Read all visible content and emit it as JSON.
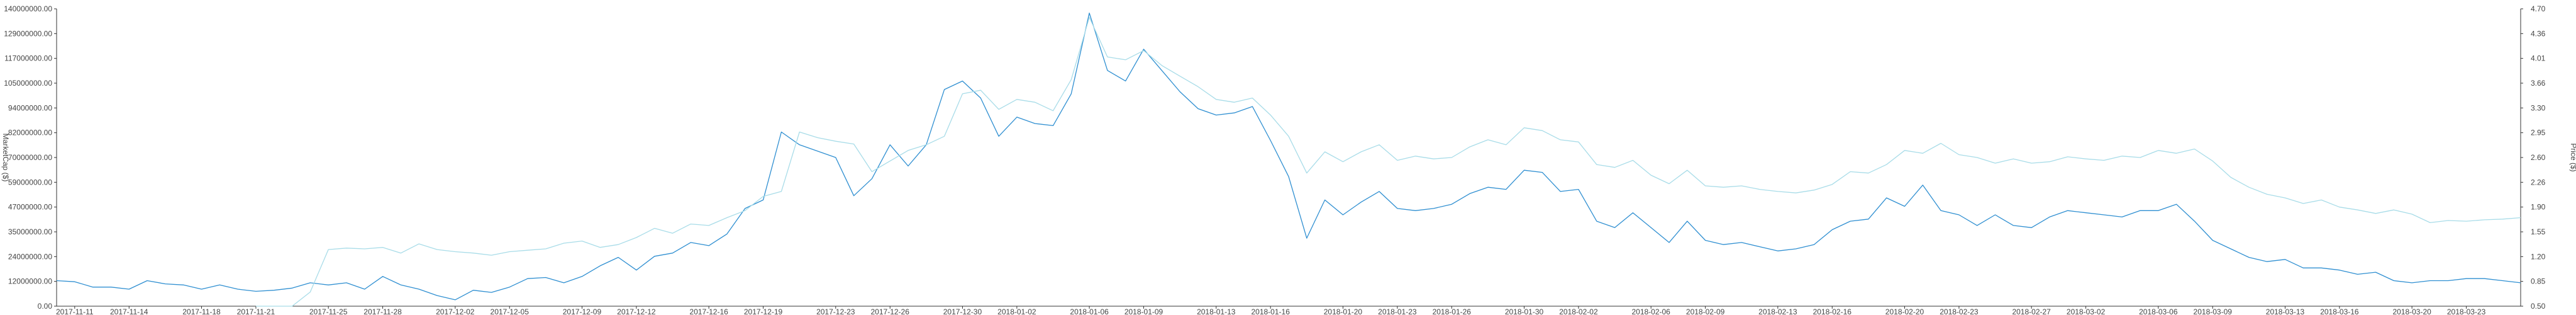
{
  "chart_data": {
    "type": "line",
    "y_left": {
      "label": "MarketCap ($)",
      "ticks": [
        "0.00",
        "12000000.00",
        "24000000.00",
        "35000000.00",
        "47000000.00",
        "59000000.00",
        "70000000.00",
        "82000000.00",
        "94000000.00",
        "105000000.00",
        "117000000.00",
        "129000000.00",
        "140000000.00"
      ],
      "ylim": [
        0,
        140000000
      ]
    },
    "y_right": {
      "label": "Price ($)",
      "ticks": [
        "0.50",
        "0.85",
        "1.20",
        "1.55",
        "1.90",
        "2.26",
        "2.60",
        "2.95",
        "3.30",
        "3.66",
        "4.01",
        "4.36",
        "4.70"
      ],
      "ylim": [
        0.5,
        4.7
      ]
    },
    "x_ticks": [
      "2017-11-11",
      "2017-11-14",
      "2017-11-18",
      "2017-11-21",
      "2017-11-25",
      "2017-11-28",
      "2017-12-02",
      "2017-12-05",
      "2017-12-09",
      "2017-12-12",
      "2017-12-16",
      "2017-12-19",
      "2017-12-23",
      "2017-12-26",
      "2017-12-30",
      "2018-01-02",
      "2018-01-06",
      "2018-01-09",
      "2018-01-13",
      "2018-01-16",
      "2018-01-20",
      "2018-01-23",
      "2018-01-26",
      "2018-01-30",
      "2018-02-02",
      "2018-02-06",
      "2018-02-09",
      "2018-02-13",
      "2018-02-16",
      "2018-02-20",
      "2018-02-23",
      "2018-02-27",
      "2018-03-02",
      "2018-03-06",
      "2018-03-09",
      "2018-03-13",
      "2018-03-16",
      "2018-03-20",
      "2018-03-23"
    ],
    "x_range": [
      "2017-11-10",
      "2018-03-26"
    ],
    "grid": false,
    "legend": "none",
    "series": [
      {
        "axis": "left",
        "color": "#2f8fd1",
        "x": [
          "2017-11-10",
          "2017-11-11",
          "2017-11-12",
          "2017-11-13",
          "2017-11-14",
          "2017-11-15",
          "2017-11-16",
          "2017-11-17",
          "2017-11-18",
          "2017-11-19",
          "2017-11-20",
          "2017-11-21",
          "2017-11-22",
          "2017-11-23",
          "2017-11-24",
          "2017-11-25",
          "2017-11-26",
          "2017-11-27",
          "2017-11-28",
          "2017-11-29",
          "2017-11-30",
          "2017-12-01",
          "2017-12-02",
          "2017-12-03",
          "2017-12-04",
          "2017-12-05",
          "2017-12-06",
          "2017-12-07",
          "2017-12-08",
          "2017-12-09",
          "2017-12-10",
          "2017-12-11",
          "2017-12-12",
          "2017-12-13",
          "2017-12-14",
          "2017-12-15",
          "2017-12-16",
          "2017-12-17",
          "2017-12-18",
          "2017-12-19",
          "2017-12-20",
          "2017-12-21",
          "2017-12-22",
          "2017-12-23",
          "2017-12-24",
          "2017-12-25",
          "2017-12-26",
          "2017-12-27",
          "2017-12-28",
          "2017-12-29",
          "2017-12-30",
          "2017-12-31",
          "2018-01-01",
          "2018-01-02",
          "2018-01-03",
          "2018-01-04",
          "2018-01-05",
          "2018-01-06",
          "2018-01-07",
          "2018-01-08",
          "2018-01-09",
          "2018-01-10",
          "2018-01-11",
          "2018-01-12",
          "2018-01-13",
          "2018-01-14",
          "2018-01-15",
          "2018-01-16",
          "2018-01-17",
          "2018-01-18",
          "2018-01-19",
          "2018-01-20",
          "2018-01-21",
          "2018-01-22",
          "2018-01-23",
          "2018-01-24",
          "2018-01-25",
          "2018-01-26",
          "2018-01-27",
          "2018-01-28",
          "2018-01-29",
          "2018-01-30",
          "2018-01-31",
          "2018-02-01",
          "2018-02-02",
          "2018-02-03",
          "2018-02-04",
          "2018-02-05",
          "2018-02-06",
          "2018-02-07",
          "2018-02-08",
          "2018-02-09",
          "2018-02-10",
          "2018-02-11",
          "2018-02-12",
          "2018-02-13",
          "2018-02-14",
          "2018-02-15",
          "2018-02-16",
          "2018-02-17",
          "2018-02-18",
          "2018-02-19",
          "2018-02-20",
          "2018-02-21",
          "2018-02-22",
          "2018-02-23",
          "2018-02-24",
          "2018-02-25",
          "2018-02-26",
          "2018-02-27",
          "2018-02-28",
          "2018-03-01",
          "2018-03-02",
          "2018-03-03",
          "2018-03-04",
          "2018-03-05",
          "2018-03-06",
          "2018-03-07",
          "2018-03-08",
          "2018-03-09",
          "2018-03-10",
          "2018-03-11",
          "2018-03-12",
          "2018-03-13",
          "2018-03-14",
          "2018-03-15",
          "2018-03-16",
          "2018-03-17",
          "2018-03-18",
          "2018-03-19",
          "2018-03-20",
          "2018-03-21",
          "2018-03-22",
          "2018-03-23",
          "2018-03-24",
          "2018-03-25",
          "2018-03-26"
        ],
        "values": [
          12.0,
          11.5,
          9.0,
          9.0,
          8.0,
          12.0,
          10.5,
          10.0,
          8.0,
          10.0,
          8.0,
          7.0,
          7.5,
          8.5,
          11.0,
          10.0,
          11.0,
          8.0,
          14.0,
          10.0,
          8.0,
          5.0,
          3.0,
          7.5,
          6.5,
          9.0,
          13.0,
          13.5,
          11.0,
          14.0,
          19.0,
          23.0,
          17.0,
          23.5,
          25.0,
          30.0,
          28.5,
          34.0,
          46.0,
          50.0,
          82.0,
          76.0,
          73.0,
          70.0,
          52.0,
          60.0,
          76.0,
          66.0,
          76.0,
          102.0,
          106.0,
          98.0,
          80.0,
          89.0,
          86.0,
          85.0,
          100.0,
          138.0,
          111.0,
          106.0,
          121.0,
          111.0,
          101.0,
          93.0,
          90.0,
          91.0,
          94.0,
          78.0,
          61.0,
          32.0,
          50.0,
          43.0,
          49.0,
          54.0,
          46.0,
          45.0,
          46.0,
          48.0,
          53.0,
          56.0,
          55.0,
          64.0,
          63.0,
          54.0,
          55.0,
          40.0,
          37.0,
          44.0,
          37.0,
          30.0,
          40.0,
          31.0,
          29.0,
          30.0,
          28.0,
          26.0,
          27.0,
          29.0,
          36.0,
          40.0,
          41.0,
          51.0,
          47.0,
          57.0,
          45.0,
          43.0,
          38.0,
          43.0,
          38.0,
          37.0,
          42.0,
          45.0,
          44.0,
          43.0,
          42.0,
          45.0,
          45.0,
          48.0,
          40.0,
          31.0,
          27.0,
          23.0,
          21.0,
          22.0,
          18.0,
          18.0,
          17.0,
          15.0,
          16.0,
          12.0,
          11.0,
          12.0,
          12.0,
          13.0,
          13.0,
          12.0,
          11.0
        ]
      },
      {
        "axis": "right",
        "color": "#a8dce8",
        "x": [
          "2017-11-21",
          "2017-11-22",
          "2017-11-23",
          "2017-11-24",
          "2017-11-25",
          "2017-11-26",
          "2017-11-27",
          "2017-11-28",
          "2017-11-29",
          "2017-11-30",
          "2017-12-01",
          "2017-12-02",
          "2017-12-03",
          "2017-12-04",
          "2017-12-05",
          "2017-12-06",
          "2017-12-07",
          "2017-12-08",
          "2017-12-09",
          "2017-12-10",
          "2017-12-11",
          "2017-12-12",
          "2017-12-13",
          "2017-12-14",
          "2017-12-15",
          "2017-12-16",
          "2017-12-17",
          "2017-12-18",
          "2017-12-19",
          "2017-12-20",
          "2017-12-21",
          "2017-12-22",
          "2017-12-23",
          "2017-12-24",
          "2017-12-25",
          "2017-12-26",
          "2017-12-27",
          "2017-12-28",
          "2017-12-29",
          "2017-12-30",
          "2017-12-31",
          "2018-01-01",
          "2018-01-02",
          "2018-01-03",
          "2018-01-04",
          "2018-01-05",
          "2018-01-06",
          "2018-01-07",
          "2018-01-08",
          "2018-01-09",
          "2018-01-10",
          "2018-01-11",
          "2018-01-12",
          "2018-01-13",
          "2018-01-14",
          "2018-01-15",
          "2018-01-16",
          "2018-01-17",
          "2018-01-18",
          "2018-01-19",
          "2018-01-20",
          "2018-01-21",
          "2018-01-22",
          "2018-01-23",
          "2018-01-24",
          "2018-01-25",
          "2018-01-26",
          "2018-01-27",
          "2018-01-28",
          "2018-01-29",
          "2018-01-30",
          "2018-01-31",
          "2018-02-01",
          "2018-02-02",
          "2018-02-03",
          "2018-02-04",
          "2018-02-05",
          "2018-02-06",
          "2018-02-07",
          "2018-02-08",
          "2018-02-09",
          "2018-02-10",
          "2018-02-11",
          "2018-02-12",
          "2018-02-13",
          "2018-02-14",
          "2018-02-15",
          "2018-02-16",
          "2018-02-17",
          "2018-02-18",
          "2018-02-19",
          "2018-02-20",
          "2018-02-21",
          "2018-02-22",
          "2018-02-23",
          "2018-02-24",
          "2018-02-25",
          "2018-02-26",
          "2018-02-27",
          "2018-02-28",
          "2018-03-01",
          "2018-03-02",
          "2018-03-03",
          "2018-03-04",
          "2018-03-05",
          "2018-03-06",
          "2018-03-07",
          "2018-03-08",
          "2018-03-09",
          "2018-03-10",
          "2018-03-11",
          "2018-03-12",
          "2018-03-13",
          "2018-03-14",
          "2018-03-15",
          "2018-03-16",
          "2018-03-17",
          "2018-03-18",
          "2018-03-19",
          "2018-03-20",
          "2018-03-21",
          "2018-03-22",
          "2018-03-23",
          "2018-03-24",
          "2018-03-25",
          "2018-03-26"
        ],
        "values": [
          0.5,
          0.5,
          0.5,
          0.7,
          1.3,
          1.32,
          1.31,
          1.33,
          1.25,
          1.38,
          1.3,
          1.27,
          1.25,
          1.22,
          1.27,
          1.29,
          1.31,
          1.39,
          1.42,
          1.33,
          1.37,
          1.47,
          1.6,
          1.53,
          1.66,
          1.64,
          1.75,
          1.85,
          2.05,
          2.12,
          2.96,
          2.88,
          2.83,
          2.79,
          2.4,
          2.55,
          2.7,
          2.78,
          2.9,
          3.5,
          3.55,
          3.28,
          3.42,
          3.38,
          3.26,
          3.7,
          4.58,
          4.02,
          3.98,
          4.11,
          3.9,
          3.75,
          3.6,
          3.42,
          3.38,
          3.44,
          3.2,
          2.9,
          2.38,
          2.68,
          2.54,
          2.68,
          2.78,
          2.56,
          2.62,
          2.58,
          2.6,
          2.75,
          2.85,
          2.78,
          3.02,
          2.98,
          2.85,
          2.82,
          2.5,
          2.46,
          2.56,
          2.35,
          2.23,
          2.42,
          2.2,
          2.18,
          2.2,
          2.15,
          2.12,
          2.1,
          2.14,
          2.22,
          2.4,
          2.38,
          2.5,
          2.7,
          2.66,
          2.8,
          2.64,
          2.6,
          2.52,
          2.58,
          2.52,
          2.54,
          2.61,
          2.58,
          2.56,
          2.62,
          2.6,
          2.7,
          2.66,
          2.72,
          2.55,
          2.32,
          2.18,
          2.08,
          2.03,
          1.95,
          2.0,
          1.9,
          1.86,
          1.81,
          1.86,
          1.8,
          1.68,
          1.71,
          1.7,
          1.72,
          1.73,
          1.75
        ]
      }
    ]
  }
}
